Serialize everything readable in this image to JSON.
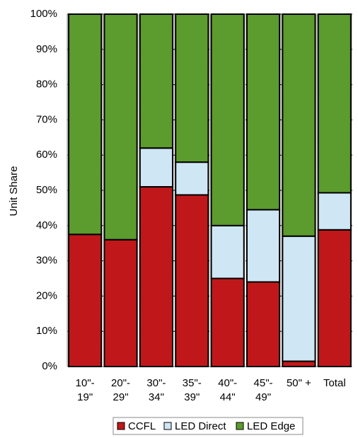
{
  "chart_data": {
    "type": "stacked-bar",
    "y_label": "Unit Share",
    "categories": [
      "10\"-\n19\"",
      "20\"-\n29\"",
      "30\"-\n34\"",
      "35\"-\n39\"",
      "40\"-\n44\"",
      "45\"-\n49\"",
      "50\" +",
      "Total"
    ],
    "series": [
      {
        "name": "CCFL",
        "color": "#c0181a",
        "values": [
          37.5,
          36,
          51,
          48.7,
          25,
          24,
          1.5,
          38.8
        ]
      },
      {
        "name": "LED Direct",
        "color": "#cfe6f5",
        "values": [
          0,
          0,
          11,
          9.3,
          15,
          20.5,
          35.5,
          10.5
        ]
      },
      {
        "name": "LED Edge",
        "color": "#5c9b2d",
        "values": [
          62.5,
          64,
          38,
          42,
          60,
          55.5,
          63,
          50.7
        ]
      }
    ],
    "ylim": [
      0,
      100
    ],
    "yticks": [
      {
        "value": 0,
        "label": "0%"
      },
      {
        "value": 10,
        "label": "10%"
      },
      {
        "value": 20,
        "label": "20%"
      },
      {
        "value": 30,
        "label": "30%"
      },
      {
        "value": 40,
        "label": "40%"
      },
      {
        "value": 50,
        "label": "50%"
      },
      {
        "value": 60,
        "label": "60%"
      },
      {
        "value": 70,
        "label": "70%"
      },
      {
        "value": 80,
        "label": "80%"
      },
      {
        "value": 90,
        "label": "90%"
      },
      {
        "value": 100,
        "label": "100%"
      }
    ],
    "grid": true
  }
}
